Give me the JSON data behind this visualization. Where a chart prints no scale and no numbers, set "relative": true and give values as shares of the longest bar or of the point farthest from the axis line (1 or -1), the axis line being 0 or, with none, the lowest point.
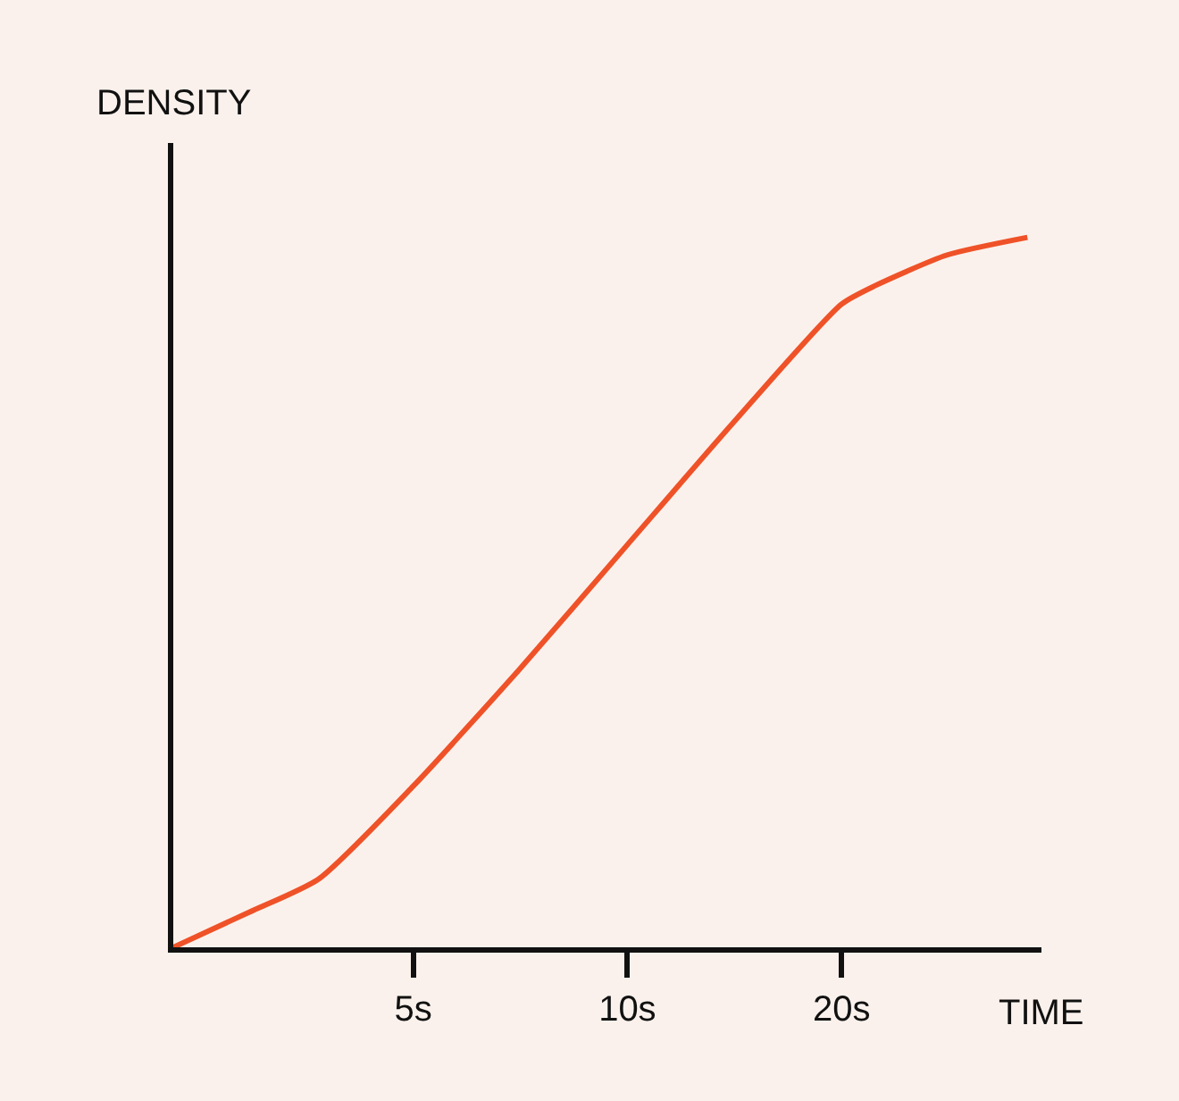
{
  "chart_data": {
    "type": "line",
    "xlabel": "TIME",
    "ylabel": "DENSITY",
    "relative": true,
    "log": "x",
    "x": [
      2.3,
      2.95,
      3.68,
      5,
      7.03,
      10,
      14.06,
      20,
      22.3,
      28.1,
      36.5
    ],
    "values": [
      0,
      0.05,
      0.096,
      0.227,
      0.39,
      0.567,
      0.738,
      0.906,
      0.932,
      0.975,
      1
    ],
    "color": "#ef5228",
    "xlim": [
      2.3,
      38.2
    ],
    "xticks": [
      {
        "value": 5,
        "label": "5s"
      },
      {
        "value": 10,
        "label": "10s"
      },
      {
        "value": 20,
        "label": "20s"
      }
    ],
    "grid": false,
    "marker": "none",
    "line_style": "solid"
  }
}
